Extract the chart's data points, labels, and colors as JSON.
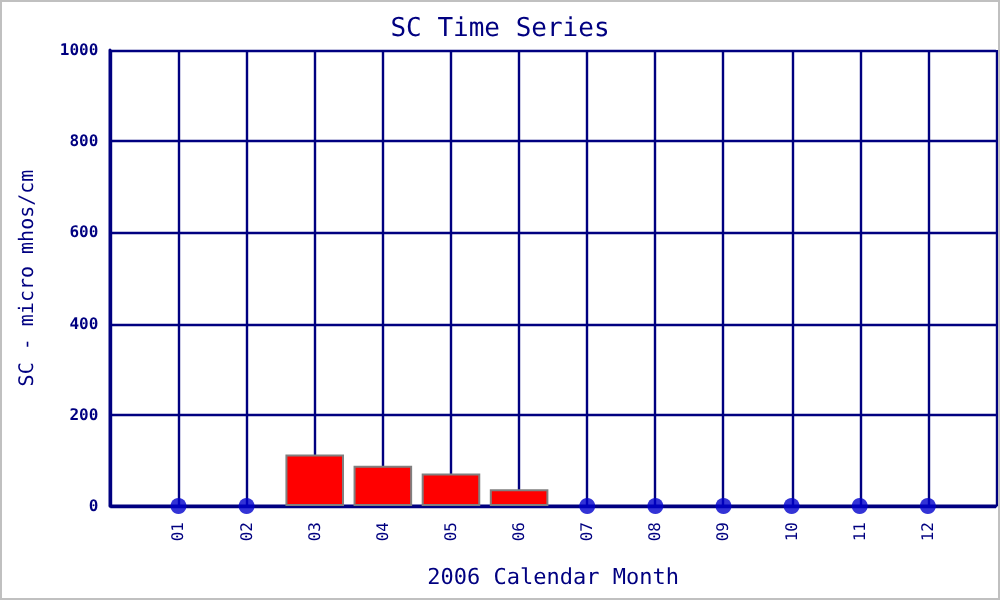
{
  "chart_data": {
    "type": "bar",
    "title": "SC Time Series",
    "xlabel": "2006 Calendar Month",
    "ylabel": "SC - micro mhos/cm",
    "categories": [
      null,
      "01",
      "02",
      "03",
      "04",
      "05",
      "06",
      "07",
      "08",
      "09",
      "10",
      "11",
      "12",
      null
    ],
    "series": [
      {
        "color": "#ff0000",
        "values": [
          null,
          null,
          null,
          113,
          88,
          71,
          37,
          null,
          null,
          null,
          null,
          null,
          null,
          null
        ]
      },
      {
        "type": "scatter",
        "color": "#0000cc",
        "values": [
          null,
          0,
          0,
          null,
          null,
          null,
          null,
          0,
          0,
          0,
          0,
          0,
          0,
          null
        ]
      }
    ],
    "ylim": [
      0,
      1000
    ],
    "yticks": [
      0,
      200,
      400,
      600,
      800,
      1000
    ],
    "grid": true,
    "marker": "circle"
  }
}
